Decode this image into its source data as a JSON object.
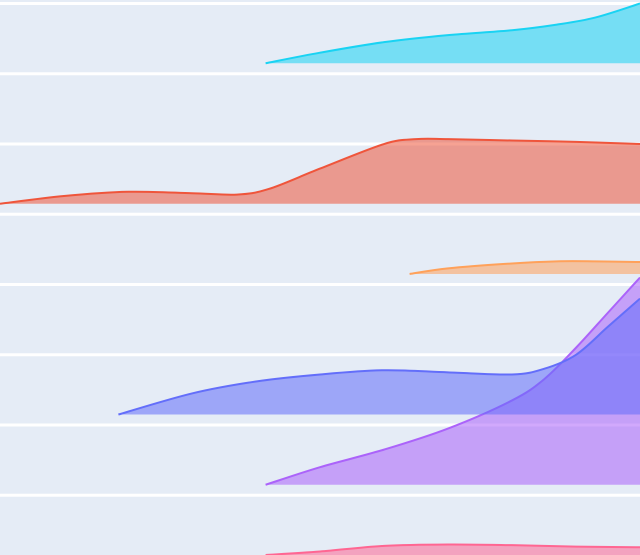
{
  "chart_data": {
    "type": "area",
    "title": "",
    "xlabel": "",
    "ylabel": "",
    "grid": true,
    "legend": "none",
    "plot_background": "#e5ecf6",
    "grid_color": "#ffffff",
    "x_range": [
      0,
      1
    ],
    "y_range": [
      0.15,
      8.05
    ],
    "y_gridlines": [
      1,
      2,
      3,
      4,
      5,
      6,
      7,
      8
    ],
    "series": [
      {
        "id": "pink",
        "color": "#ff6692",
        "baseline": 0.15,
        "x": [
          0.415,
          0.5,
          0.6,
          0.7,
          0.8,
          0.9,
          1.0
        ],
        "y": [
          0.15,
          0.2,
          0.28,
          0.3,
          0.29,
          0.27,
          0.26
        ]
      },
      {
        "id": "purple",
        "color": "#ab63fa",
        "baseline": 1.15,
        "x": [
          0.415,
          0.5,
          0.6,
          0.7,
          0.8,
          0.85,
          0.9,
          0.95,
          1.0
        ],
        "y": [
          1.15,
          1.4,
          1.65,
          1.95,
          2.35,
          2.65,
          3.1,
          3.6,
          4.1
        ]
      },
      {
        "id": "blue",
        "color": "#636efa",
        "baseline": 2.15,
        "x": [
          0.185,
          0.3,
          0.4,
          0.5,
          0.6,
          0.7,
          0.8,
          0.85,
          0.9,
          0.95,
          1.0
        ],
        "y": [
          2.15,
          2.45,
          2.62,
          2.72,
          2.78,
          2.75,
          2.72,
          2.8,
          3.0,
          3.4,
          3.8
        ]
      },
      {
        "id": "orange",
        "color": "#ffa15a",
        "baseline": 4.15,
        "x": [
          0.64,
          0.7,
          0.8,
          0.87,
          0.93,
          1.0
        ],
        "y": [
          4.15,
          4.23,
          4.3,
          4.33,
          4.33,
          4.32
        ]
      },
      {
        "id": "red",
        "color": "#ef553b",
        "baseline": 5.15,
        "x": [
          0.0,
          0.1,
          0.2,
          0.3,
          0.37,
          0.42,
          0.5,
          0.6,
          0.65,
          0.7,
          0.8,
          0.9,
          1.0
        ],
        "y": [
          5.15,
          5.26,
          5.32,
          5.3,
          5.28,
          5.36,
          5.65,
          6.0,
          6.07,
          6.07,
          6.05,
          6.03,
          6.0
        ]
      },
      {
        "id": "cyan",
        "color": "#19d3f3",
        "baseline": 7.15,
        "x": [
          0.415,
          0.5,
          0.6,
          0.7,
          0.8,
          0.87,
          0.93,
          1.0
        ],
        "y": [
          7.15,
          7.3,
          7.45,
          7.55,
          7.62,
          7.7,
          7.8,
          8.0
        ]
      }
    ]
  }
}
